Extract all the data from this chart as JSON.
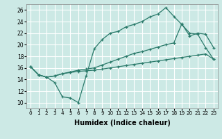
{
  "xlabel": "Humidex (Indice chaleur)",
  "bg_color": "#cce9e5",
  "grid_color": "#ffffff",
  "line_color": "#2a7a6a",
  "xlim": [
    -0.5,
    23.5
  ],
  "ylim": [
    9.0,
    27.0
  ],
  "xticks": [
    0,
    1,
    2,
    3,
    4,
    5,
    6,
    7,
    8,
    9,
    10,
    11,
    12,
    13,
    14,
    15,
    16,
    17,
    18,
    19,
    20,
    21,
    22,
    23
  ],
  "yticks": [
    10,
    12,
    14,
    16,
    18,
    20,
    22,
    24,
    26
  ],
  "line1_x": [
    0,
    1,
    2,
    3,
    4,
    5,
    6,
    7,
    8,
    9,
    10,
    11,
    12,
    13,
    14,
    15,
    16,
    17,
    18,
    19,
    20,
    21,
    22,
    23
  ],
  "line1_y": [
    16.2,
    14.8,
    14.4,
    13.5,
    11.0,
    10.8,
    10.0,
    14.7,
    19.3,
    20.9,
    22.0,
    22.3,
    23.1,
    23.5,
    24.0,
    24.8,
    25.3,
    26.4,
    24.9,
    23.5,
    22.0,
    21.8,
    19.5,
    17.5
  ],
  "line2_x": [
    0,
    1,
    2,
    3,
    4,
    5,
    6,
    7,
    8,
    9,
    10,
    11,
    12,
    13,
    14,
    15,
    16,
    17,
    18,
    19,
    20,
    21,
    22,
    23
  ],
  "line2_y": [
    16.2,
    14.8,
    14.4,
    14.6,
    15.0,
    15.3,
    15.6,
    15.8,
    16.0,
    16.5,
    17.0,
    17.5,
    18.0,
    18.5,
    18.8,
    19.2,
    19.6,
    20.0,
    20.3,
    23.6,
    21.5,
    22.0,
    21.8,
    19.5
  ],
  "line3_x": [
    0,
    1,
    2,
    3,
    4,
    5,
    6,
    7,
    8,
    9,
    10,
    11,
    12,
    13,
    14,
    15,
    16,
    17,
    18,
    19,
    20,
    21,
    22,
    23
  ],
  "line3_y": [
    16.2,
    14.8,
    14.4,
    14.6,
    15.0,
    15.2,
    15.4,
    15.5,
    15.6,
    15.8,
    16.0,
    16.2,
    16.4,
    16.6,
    16.8,
    17.0,
    17.2,
    17.4,
    17.6,
    17.8,
    18.0,
    18.2,
    18.4,
    17.5
  ]
}
